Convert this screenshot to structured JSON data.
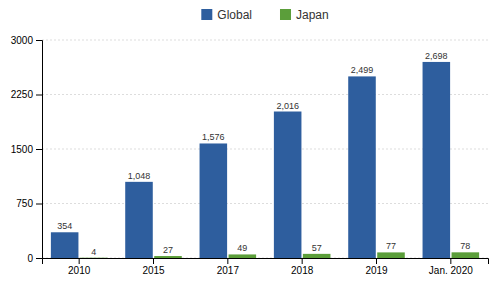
{
  "chart_data": {
    "type": "bar",
    "categories": [
      "2010",
      "2015",
      "2017",
      "2018",
      "2019",
      "Jan. 2020"
    ],
    "series": [
      {
        "name": "Global",
        "color": "#2E5E9E",
        "values": [
          354,
          1048,
          1576,
          2016,
          2499,
          2698
        ],
        "value_labels": [
          "354",
          "1,048",
          "1,576",
          "2,016",
          "2,499",
          "2,698"
        ]
      },
      {
        "name": "Japan",
        "color": "#5B9E3A",
        "values": [
          4,
          27,
          49,
          57,
          77,
          78
        ]
      }
    ],
    "ylim": [
      0,
      3000
    ],
    "yticks": [
      0,
      750,
      1500,
      2250,
      3000
    ],
    "grid": true,
    "legend": "top",
    "data_labels": true
  }
}
